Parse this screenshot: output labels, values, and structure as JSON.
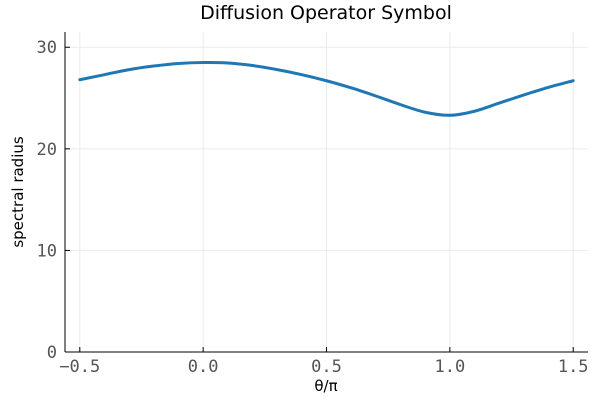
{
  "chart_data": {
    "type": "line",
    "title": "Diffusion Operator Symbol",
    "xlabel": "θ/π",
    "ylabel": "spectral radius",
    "xlim": [
      -0.56,
      1.56
    ],
    "ylim": [
      0,
      31.5
    ],
    "xticks": [
      -0.5,
      0,
      0.5,
      1,
      1.5
    ],
    "xtick_labels": [
      "−0.5",
      "0.0",
      "0.5",
      "1.0",
      "1.5"
    ],
    "yticks": [
      0,
      10,
      20,
      30
    ],
    "ytick_labels": [
      "0",
      "10",
      "20",
      "30"
    ],
    "grid": true,
    "legend": "none",
    "series": [
      {
        "color": "#1f77b4",
        "x": [
          -0.5,
          -0.4,
          -0.3,
          -0.2,
          -0.1,
          0.0,
          0.1,
          0.2,
          0.3,
          0.4,
          0.5,
          0.6,
          0.7,
          0.8,
          0.9,
          1.0,
          1.1,
          1.2,
          1.3,
          1.4,
          1.5
        ],
        "y": [
          26.8,
          27.3,
          27.8,
          28.15,
          28.4,
          28.5,
          28.45,
          28.2,
          27.8,
          27.3,
          26.7,
          26.0,
          25.2,
          24.35,
          23.6,
          23.3,
          23.7,
          24.5,
          25.3,
          26.05,
          26.7
        ]
      }
    ]
  }
}
